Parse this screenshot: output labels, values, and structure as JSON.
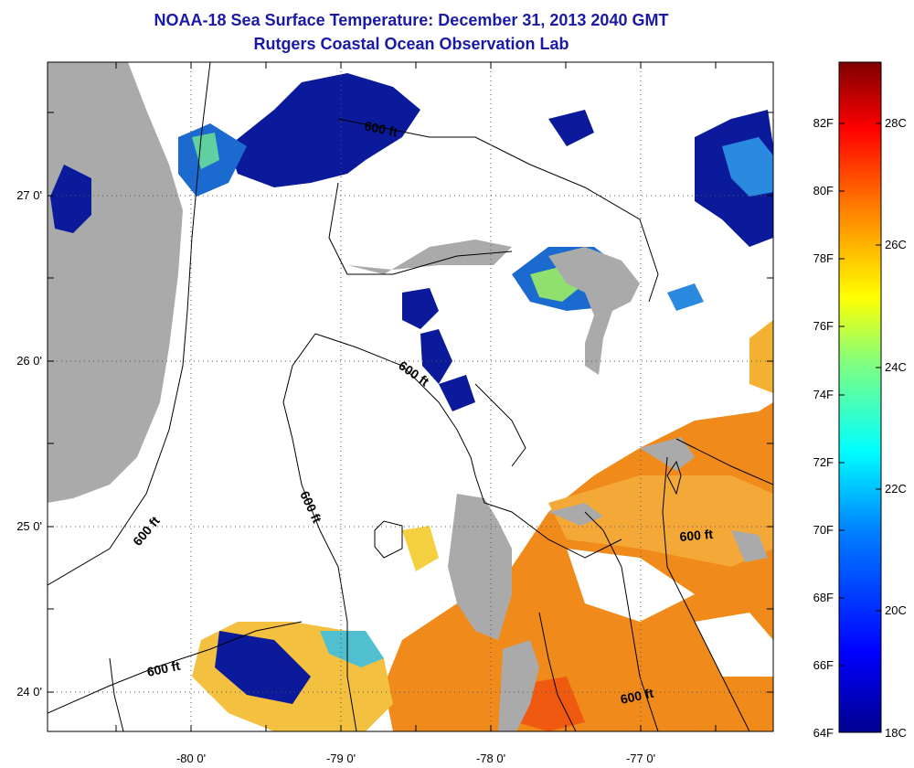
{
  "header": {
    "title": "NOAA-18 Sea Surface Temperature:  December 31, 2013 2040 GMT",
    "subtitle": "Rutgers Coastal Ocean Observation Lab"
  },
  "map": {
    "lon_labels": [
      "-80 0'",
      "-79 0'",
      "-78 0'",
      "-77 0'"
    ],
    "lat_labels": [
      "27 0'",
      "26 0'",
      "25 0'",
      "24 0'"
    ],
    "contour_labels": [
      "600 ft",
      "600 ft",
      "600 ft",
      "600 ft",
      "600 ft",
      "600 ft",
      "600 ft"
    ],
    "grid": "dotted"
  },
  "colorbar": {
    "f_labels": [
      "82F",
      "80F",
      "78F",
      "76F",
      "74F",
      "72F",
      "70F",
      "68F",
      "66F",
      "64F"
    ],
    "c_labels": [
      "28C",
      "26C",
      "24C",
      "22C",
      "20C",
      "18C"
    ],
    "colors": [
      "#00008f",
      "#0000ff",
      "#0080ff",
      "#00ffff",
      "#80ff80",
      "#ffff00",
      "#ff8000",
      "#ff0000",
      "#800000"
    ]
  },
  "palette": {
    "land": "#aaaaaa",
    "cloud": "#ffffff",
    "deep_blue": "#0a1a9a",
    "orange": "#f08a1a",
    "title": "#1a1aa6"
  }
}
